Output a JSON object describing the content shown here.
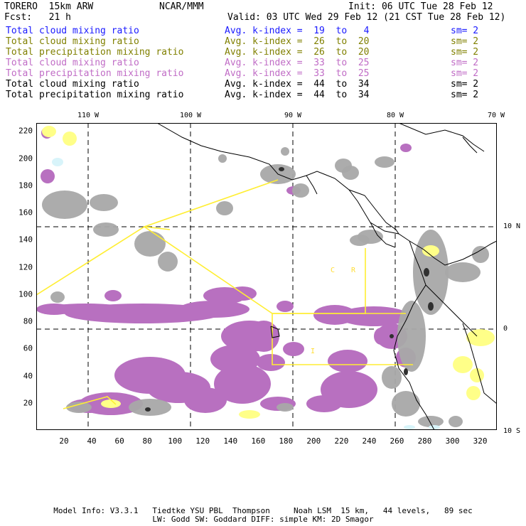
{
  "header": {
    "model": "TORERO  15km ARW",
    "center": "NCAR/MMM",
    "init": "Init: 06 UTC Tue 28 Feb 12",
    "fcst": "Fcst:   21 h",
    "valid": "Valid: 03 UTC Wed 29 Feb 12 (21 CST Tue 28 Feb 12)"
  },
  "legend": [
    {
      "field": "Total cloud mixing ratio",
      "kindex": "Avg. k-index =  19  to   4",
      "sm": "sm= 2",
      "color": "#1a1aff"
    },
    {
      "field": "Total cloud mixing ratio",
      "kindex": "Avg. k-index =  26  to  20",
      "sm": "sm= 2",
      "color": "#808000"
    },
    {
      "field": "Total precipitation mixing ratio",
      "kindex": "Avg. k-index =  26  to  20",
      "sm": "sm= 2",
      "color": "#808000"
    },
    {
      "field": "Total cloud mixing ratio",
      "kindex": "Avg. k-index =  33  to  25",
      "sm": "sm= 2",
      "color": "#c06cc6"
    },
    {
      "field": "Total precipitation mixing ratio",
      "kindex": "Avg. k-index =  33  to  25",
      "sm": "sm= 2",
      "color": "#c06cc6"
    },
    {
      "field": "Total cloud mixing ratio",
      "kindex": "Avg. k-index =  44  to  34",
      "sm": "sm= 2",
      "color": "#000000"
    },
    {
      "field": "Total precipitation mixing ratio",
      "kindex": "Avg. k-index =  44  to  34",
      "sm": "sm= 2",
      "color": "#000000"
    }
  ],
  "map": {
    "lon_labels": [
      "110 W",
      "100 W",
      "90 W",
      "80 W",
      "70 W"
    ],
    "lat_labels": [
      "10 N",
      "0",
      "10 S"
    ],
    "x_ticks": [
      20,
      40,
      60,
      80,
      100,
      120,
      140,
      160,
      180,
      200,
      220,
      240,
      260,
      280,
      300,
      320
    ],
    "y_ticks": [
      20,
      40,
      60,
      80,
      100,
      120,
      140,
      160,
      180,
      200,
      220
    ],
    "x_range": [
      0,
      332
    ],
    "y_range": [
      0,
      226
    ],
    "region_labels": [
      "I",
      "C",
      "R"
    ],
    "colors": {
      "gray_cloud": "#a8a8a8",
      "purple_precip": "#b870c0",
      "yellow_cloud": "#ffff88",
      "light_blue": "#d8f4fa",
      "dark_core": "#303030",
      "boundary": "#ffee33",
      "coast": "#000000"
    }
  },
  "footer": {
    "line1": "Model Info: V3.3.1   Tiedtke YSU PBL  Thompson     Noah LSM  15 km,   44 levels,   89 sec",
    "line2": "LW: Godd SW: Goddard DIFF: simple KM: 2D Smagor"
  }
}
